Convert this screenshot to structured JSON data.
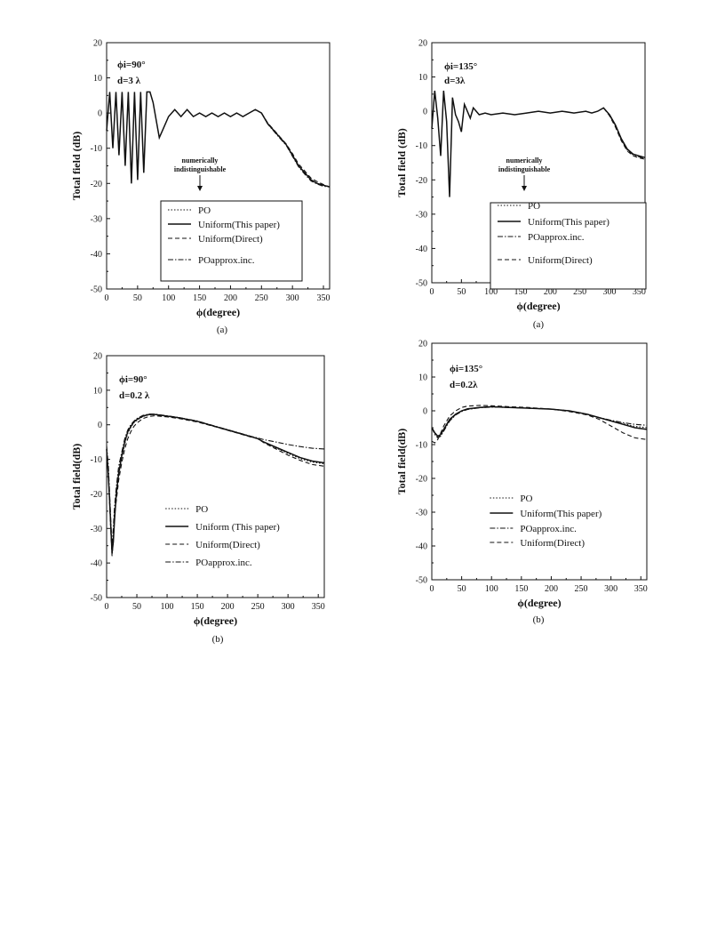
{
  "chart_data": [
    {
      "id": "a_left",
      "type": "line",
      "caption": "(a)",
      "annotation": [
        "ϕi=90°",
        "d=3 λ"
      ],
      "note": [
        "numerically",
        "indistinguishable"
      ],
      "xlabel": "ϕ(degree)",
      "ylabel": "Total field (dB)",
      "xlim": [
        0,
        360
      ],
      "ylim": [
        -50,
        20
      ],
      "xticks": [
        "0",
        "50",
        "100",
        "150",
        "200",
        "250",
        "300",
        "350"
      ],
      "yticks": [
        "20",
        "10",
        "0",
        "-10",
        "-20",
        "-30",
        "-40",
        "-50"
      ],
      "legend": [
        "PO",
        "Uniform(This paper)",
        "Uniform(Direct)",
        "POapprox.inc."
      ],
      "series": [
        {
          "name": "Uniform(This paper)",
          "style": "solid",
          "x": [
            0,
            5,
            10,
            15,
            20,
            25,
            30,
            35,
            40,
            45,
            50,
            55,
            60,
            65,
            70,
            75,
            80,
            85,
            90,
            100,
            110,
            120,
            130,
            140,
            150,
            160,
            170,
            180,
            190,
            200,
            210,
            220,
            230,
            240,
            250,
            260,
            270,
            280,
            290,
            300,
            310,
            320,
            330,
            340,
            350,
            360
          ],
          "y": [
            -5,
            6,
            -10,
            6,
            -12,
            6,
            -15,
            6,
            -20,
            6,
            -19,
            6,
            -17,
            6,
            6,
            3,
            -2,
            -7,
            -5,
            -1,
            1,
            -1,
            1,
            -1,
            0,
            -1,
            0,
            -1,
            0,
            -1,
            0,
            -1,
            0,
            1,
            0,
            -3,
            -5,
            -7,
            -9,
            -12,
            -15,
            -17,
            -19,
            -20,
            -20.5,
            -21
          ]
        },
        {
          "name": "Uniform(Direct)",
          "style": "dashed",
          "x": [
            250,
            260,
            270,
            280,
            290,
            300,
            310,
            320,
            330,
            340,
            350,
            360
          ],
          "y": [
            0,
            -2.8,
            -4.8,
            -6.8,
            -8.8,
            -11.5,
            -14.5,
            -16.5,
            -18.5,
            -19.5,
            -20.3,
            -21
          ]
        },
        {
          "name": "POapprox.inc.",
          "style": "dashdot",
          "x": [
            250,
            260,
            270,
            280,
            290,
            300,
            310,
            320,
            330,
            340,
            350,
            360
          ],
          "y": [
            0,
            -3.1,
            -5.2,
            -7.2,
            -9.2,
            -12.3,
            -15.3,
            -17.4,
            -19.3,
            -20.2,
            -20.8,
            -21
          ]
        }
      ]
    },
    {
      "id": "a_right",
      "type": "line",
      "caption": "(a)",
      "annotation": [
        "ϕi=135°",
        "d=3λ"
      ],
      "note": [
        "numerically",
        "indistinguishable"
      ],
      "xlabel": "ϕ(degree)",
      "ylabel": "Total field (dB)",
      "xlim": [
        0,
        360
      ],
      "ylim": [
        -50,
        20
      ],
      "xticks": [
        "0",
        "50",
        "100",
        "150",
        "200",
        "250",
        "300",
        "350"
      ],
      "yticks": [
        "20",
        "10",
        "0",
        "-10",
        "-20",
        "-30",
        "-40",
        "-50"
      ],
      "legend": [
        "PO",
        "Uniform(This paper)",
        "POapprox.inc.",
        "Uniform(Direct)"
      ],
      "series": [
        {
          "name": "Uniform(This paper)",
          "style": "solid",
          "x": [
            0,
            5,
            10,
            15,
            20,
            25,
            30,
            35,
            40,
            45,
            50,
            55,
            60,
            65,
            70,
            75,
            80,
            90,
            100,
            120,
            140,
            160,
            180,
            200,
            220,
            240,
            260,
            270,
            280,
            290,
            300,
            310,
            320,
            330,
            340,
            350,
            360
          ],
          "y": [
            -5,
            6,
            -2,
            -13,
            6,
            -3,
            -25,
            4,
            -1,
            -3,
            -6,
            2,
            0,
            -2,
            1,
            0,
            -1,
            -0.5,
            -1,
            -0.5,
            -1,
            -0.5,
            0,
            -0.5,
            0,
            -0.5,
            0,
            -0.5,
            0,
            1,
            -1,
            -4,
            -8,
            -11,
            -12.5,
            -13,
            -13.5
          ]
        },
        {
          "name": "Uniform(Direct)",
          "style": "dashed",
          "x": [
            290,
            300,
            310,
            320,
            330,
            340,
            350,
            360
          ],
          "y": [
            1,
            -1.3,
            -4.6,
            -8.6,
            -11.6,
            -13,
            -13.6,
            -14
          ]
        },
        {
          "name": "POapprox.inc.",
          "style": "dashdot",
          "x": [
            290,
            300,
            310,
            320,
            330,
            340,
            350,
            360
          ],
          "y": [
            1,
            -1.1,
            -4.3,
            -8.3,
            -11.3,
            -12.7,
            -13.3,
            -13.8
          ]
        }
      ]
    },
    {
      "id": "b_left",
      "type": "line",
      "caption": "(b)",
      "annotation": [
        "ϕi=90°",
        "d=0.2 λ"
      ],
      "xlabel": "ϕ(degree)",
      "ylabel": "Total field(dB)",
      "xlim": [
        0,
        360
      ],
      "ylim": [
        -50,
        20
      ],
      "xticks": [
        "0",
        "50",
        "100",
        "150",
        "200",
        "250",
        "300",
        "350"
      ],
      "yticks": [
        "20",
        "10",
        "0",
        "-10",
        "-20",
        "-30",
        "-40",
        "-50"
      ],
      "legend": [
        "PO",
        "Uniform (This paper)",
        "Uniform(Direct)",
        "POapprox.inc."
      ],
      "series": [
        {
          "name": "Uniform (This paper)",
          "style": "solid",
          "x": [
            0,
            3,
            5,
            7,
            9,
            11,
            13,
            16,
            20,
            25,
            30,
            35,
            40,
            45,
            50,
            60,
            70,
            80,
            100,
            120,
            150,
            180,
            200,
            220,
            240,
            250,
            260,
            280,
            300,
            320,
            340,
            360
          ],
          "y": [
            -7,
            -15,
            -22,
            -30,
            -37,
            -34,
            -28,
            -20,
            -14,
            -9,
            -5,
            -2,
            -0.5,
            0.8,
            1.5,
            2.5,
            3,
            3,
            2.5,
            2,
            1,
            -0.5,
            -1.5,
            -2.5,
            -3.5,
            -4,
            -5,
            -6.5,
            -8,
            -9.5,
            -10.5,
            -11
          ]
        },
        {
          "name": "Uniform(Direct)",
          "style": "dashed",
          "x": [
            0,
            3,
            5,
            7,
            9,
            11,
            13,
            16,
            20,
            25,
            30,
            35,
            40,
            45,
            50,
            60,
            70,
            80,
            100,
            120,
            150,
            180,
            200,
            220,
            240,
            250,
            260,
            280,
            300,
            320,
            340,
            360
          ],
          "y": [
            -8,
            -14,
            -23,
            -31,
            -38,
            -33,
            -26,
            -22,
            -16,
            -11,
            -7,
            -4,
            -2,
            -0.5,
            0.5,
            1.8,
            2.4,
            2.6,
            2.3,
            1.8,
            0.8,
            -0.6,
            -1.6,
            -2.6,
            -3.6,
            -4,
            -5.2,
            -7,
            -8.8,
            -10.3,
            -11.5,
            -12
          ]
        },
        {
          "name": "POapprox.inc.",
          "style": "dashdot",
          "x": [
            0,
            3,
            5,
            7,
            9,
            11,
            13,
            16,
            20,
            25,
            30,
            35,
            40,
            45,
            50,
            60,
            70,
            80,
            100,
            120,
            150,
            180,
            200,
            220,
            240,
            250,
            260,
            280,
            300,
            320,
            340,
            360
          ],
          "y": [
            -6,
            -12,
            -20,
            -28,
            -35,
            -30,
            -24,
            -18,
            -12,
            -8,
            -4,
            -1.5,
            0,
            1,
            1.8,
            2.7,
            3.1,
            3.1,
            2.6,
            2.1,
            1.1,
            -0.4,
            -1.4,
            -2.4,
            -3.4,
            -3.8,
            -4.3,
            -5,
            -5.7,
            -6.3,
            -6.8,
            -7
          ]
        },
        {
          "name": "PO",
          "style": "dotted",
          "x": [
            0,
            3,
            5,
            7,
            9,
            11,
            13,
            16,
            20,
            25,
            30,
            35,
            40,
            45,
            50,
            60,
            70,
            80,
            100,
            120,
            150,
            180,
            200,
            220,
            240,
            250,
            260,
            280,
            300,
            320,
            340,
            360
          ],
          "y": [
            -7,
            -14.5,
            -22.5,
            -30.5,
            -37.5,
            -34,
            -27.5,
            -20.5,
            -14.5,
            -9.5,
            -5.5,
            -2.5,
            -0.8,
            0.6,
            1.3,
            2.4,
            2.9,
            3,
            2.5,
            2,
            1,
            -0.5,
            -1.5,
            -2.5,
            -3.5,
            -4,
            -5,
            -6.7,
            -8.3,
            -9.8,
            -10.8,
            -11.3
          ]
        }
      ]
    },
    {
      "id": "b_right",
      "type": "line",
      "caption": "(b)",
      "annotation": [
        "ϕi=135°",
        "d=0.2λ"
      ],
      "xlabel": "ϕ(degree)",
      "ylabel": "Total field(dB)",
      "xlim": [
        0,
        360
      ],
      "ylim": [
        -50,
        20
      ],
      "xticks": [
        "0",
        "50",
        "100",
        "150",
        "200",
        "250",
        "300",
        "350"
      ],
      "yticks": [
        "20",
        "10",
        "0",
        "-10",
        "-20",
        "-30",
        "-40",
        "-50"
      ],
      "legend": [
        "PO",
        "Uniform(This paper)",
        "POapprox.inc.",
        "Uniform(Direct)"
      ],
      "series": [
        {
          "name": "Uniform(This paper)",
          "style": "solid",
          "x": [
            0,
            5,
            10,
            15,
            20,
            30,
            40,
            50,
            60,
            80,
            100,
            130,
            160,
            200,
            230,
            260,
            280,
            300,
            320,
            340,
            360
          ],
          "y": [
            -5,
            -6.5,
            -7.5,
            -7,
            -5.5,
            -2.5,
            -1,
            0,
            0.6,
            1,
            1.2,
            1,
            0.8,
            0.5,
            0,
            -1,
            -2,
            -3,
            -4,
            -5,
            -5.5
          ]
        },
        {
          "name": "Uniform(Direct)",
          "style": "dashed",
          "x": [
            0,
            5,
            10,
            15,
            20,
            30,
            40,
            50,
            60,
            80,
            100,
            130,
            160,
            200,
            230,
            260,
            280,
            300,
            320,
            340,
            360
          ],
          "y": [
            -9,
            -9.5,
            -8.5,
            -6.5,
            -4.5,
            -1.5,
            0,
            1,
            1.4,
            1.6,
            1.5,
            1.2,
            1,
            0.5,
            -0.2,
            -1.2,
            -2.5,
            -4.5,
            -6.5,
            -8,
            -8.5
          ]
        },
        {
          "name": "POapprox.inc.",
          "style": "dashdot",
          "x": [
            0,
            5,
            10,
            15,
            20,
            30,
            40,
            50,
            60,
            80,
            100,
            130,
            160,
            200,
            230,
            260,
            280,
            300,
            320,
            340,
            360
          ],
          "y": [
            -5,
            -7,
            -8,
            -7.5,
            -6,
            -3,
            -1.2,
            -0.2,
            0.4,
            0.9,
            1.1,
            1,
            0.8,
            0.5,
            0,
            -1,
            -2,
            -2.8,
            -3.5,
            -4,
            -4.3
          ]
        },
        {
          "name": "PO",
          "style": "dotted",
          "x": [
            0,
            5,
            10,
            15,
            20,
            30,
            40,
            50,
            60,
            80,
            100,
            130,
            160,
            200,
            230,
            260,
            280,
            300,
            320,
            340,
            360
          ],
          "y": [
            -5,
            -6.7,
            -7.7,
            -7.2,
            -5.7,
            -2.7,
            -1.1,
            -0.1,
            0.5,
            0.95,
            1.15,
            1,
            0.8,
            0.5,
            0,
            -1,
            -2,
            -3,
            -3.8,
            -4.6,
            -5
          ]
        }
      ]
    }
  ]
}
